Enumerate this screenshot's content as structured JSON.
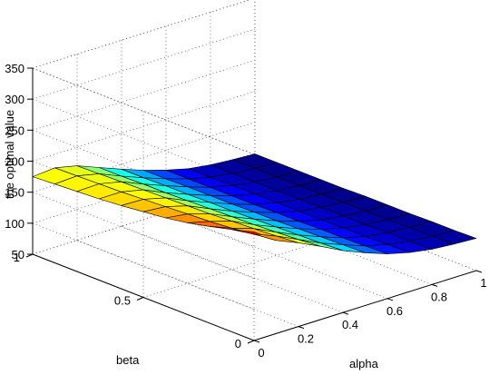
{
  "chart_data": {
    "type": "surface",
    "xlabel": "alpha",
    "ylabel": "beta",
    "zlabel": "the optimal value",
    "xlim": [
      0,
      1
    ],
    "ylim": [
      0,
      1
    ],
    "zlim": [
      50,
      350
    ],
    "x_ticks": [
      0,
      0.2,
      0.4,
      0.6,
      0.8,
      1
    ],
    "x_tick_labels": [
      "0",
      "0.2",
      "0.4",
      "0.6",
      "0.8",
      "1"
    ],
    "y_ticks": [
      0,
      0.5,
      1
    ],
    "y_tick_labels": [
      "0",
      "0.5",
      "1"
    ],
    "z_ticks": [
      50,
      100,
      150,
      200,
      250,
      300,
      350
    ],
    "z_tick_labels": [
      "50",
      "100",
      "150",
      "200",
      "250",
      "300",
      "350"
    ],
    "grid": true,
    "colormap": "jet",
    "x": [
      0,
      0.1,
      0.2,
      0.3,
      0.4,
      0.5,
      0.6,
      0.7,
      0.8,
      0.9,
      1.0
    ],
    "y": [
      0,
      0.1,
      0.2,
      0.3,
      0.4,
      0.5,
      0.6,
      0.7,
      0.8,
      0.9,
      1.0
    ],
    "z": [
      [
        225,
        200,
        185,
        168,
        150,
        135,
        122,
        113,
        107,
        104,
        102
      ],
      [
        215,
        196,
        182,
        165,
        148,
        134,
        121,
        112,
        106,
        103,
        101
      ],
      [
        206,
        192,
        180,
        163,
        147,
        133,
        120,
        111,
        106,
        103,
        101
      ],
      [
        198,
        189,
        178,
        161,
        146,
        132,
        120,
        111,
        105,
        102,
        100
      ],
      [
        192,
        187,
        176,
        160,
        145,
        131,
        119,
        110,
        105,
        102,
        100
      ],
      [
        188,
        185,
        175,
        159,
        144,
        131,
        119,
        110,
        105,
        102,
        100
      ],
      [
        184,
        183,
        174,
        158,
        144,
        130,
        118,
        110,
        104,
        101,
        99
      ],
      [
        181,
        181,
        173,
        157,
        143,
        130,
        118,
        110,
        104,
        101,
        99
      ],
      [
        179,
        180,
        172,
        157,
        143,
        130,
        118,
        110,
        104,
        101,
        99
      ],
      [
        177,
        179,
        171,
        156,
        142,
        129,
        118,
        109,
        104,
        101,
        99
      ],
      [
        175,
        178,
        170,
        156,
        142,
        129,
        118,
        109,
        104,
        101,
        99
      ]
    ]
  }
}
